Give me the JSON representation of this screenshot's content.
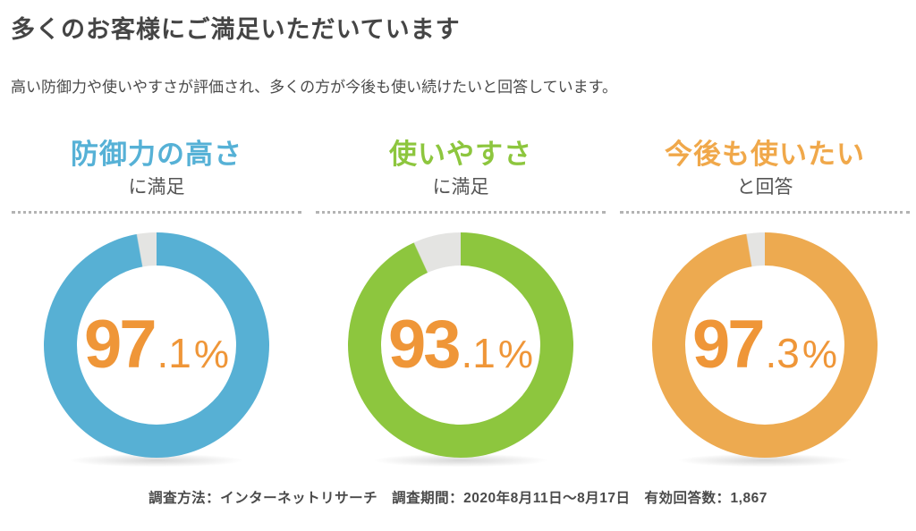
{
  "header": {
    "title": "多くのお客様にご満足いただいています",
    "subtitle": "高い防御力や使いやすさが評価され、多くの方が今後も使い続けたいと回答しています。"
  },
  "chart_data": {
    "type": "pie",
    "style": "donut",
    "legend": "none",
    "start_angle": "top",
    "direction": "clockwise",
    "donut_hole_ratio": 0.71,
    "remainder_color": "#e4e4e2",
    "value_text_color": "#ef9638",
    "charts": [
      {
        "headline": "防御力の高さ",
        "sublabel": "に満足",
        "labels": [
          "満足",
          "その他"
        ],
        "values": [
          97.1,
          2.9
        ],
        "value": 97.1,
        "display": {
          "int": "97",
          "dec": ".1",
          "unit": "%"
        },
        "ring_color": "#57b0d4",
        "headline_color": "#56b1d6"
      },
      {
        "headline": "使いやすさ",
        "sublabel": "に満足",
        "labels": [
          "満足",
          "その他"
        ],
        "values": [
          93.1,
          6.9
        ],
        "value": 93.1,
        "display": {
          "int": "93",
          "dec": ".1",
          "unit": "%"
        },
        "ring_color": "#8dc63e",
        "headline_color": "#8dc63e"
      },
      {
        "headline": "今後も使いたい",
        "sublabel": "と回答",
        "labels": [
          "回答",
          "その他"
        ],
        "values": [
          97.3,
          2.7
        ],
        "value": 97.3,
        "display": {
          "int": "97",
          "dec": ".3",
          "unit": "%"
        },
        "ring_color": "#edaa50",
        "headline_color": "#f0a84a"
      }
    ]
  },
  "footer": {
    "note": "調査方法：インターネットリサーチ　調査期間：2020年8月11日～8月17日　有効回答数：1,867"
  }
}
